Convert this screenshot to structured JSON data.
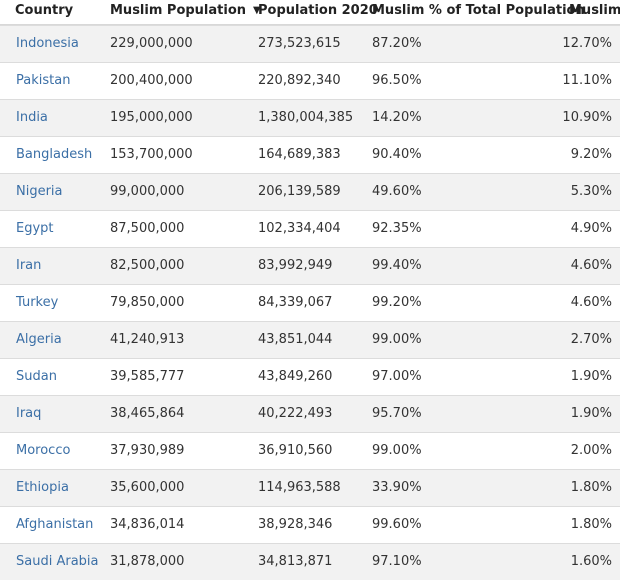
{
  "table": {
    "headers": {
      "country": "Country",
      "muslim_population": "Muslim Population",
      "population_2020": "Population 2020",
      "muslim_pct": "Muslim % of Total Population",
      "muslim_share": "Muslim"
    },
    "sort_icon": "caret-down-icon",
    "colors": {
      "link": "#3b6fa6",
      "stripe": "#f2f2f2",
      "border": "#dcdcdc"
    },
    "rows": [
      {
        "country": "Indonesia",
        "muslim_population": "229,000,000",
        "population_2020": "273,523,615",
        "muslim_pct": "87.20%",
        "muslim_share": "12.70%"
      },
      {
        "country": "Pakistan",
        "muslim_population": "200,400,000",
        "population_2020": "220,892,340",
        "muslim_pct": "96.50%",
        "muslim_share": "11.10%"
      },
      {
        "country": "India",
        "muslim_population": "195,000,000",
        "population_2020": "1,380,004,385",
        "muslim_pct": "14.20%",
        "muslim_share": "10.90%"
      },
      {
        "country": "Bangladesh",
        "muslim_population": "153,700,000",
        "population_2020": "164,689,383",
        "muslim_pct": "90.40%",
        "muslim_share": "9.20%"
      },
      {
        "country": "Nigeria",
        "muslim_population": "99,000,000",
        "population_2020": "206,139,589",
        "muslim_pct": "49.60%",
        "muslim_share": "5.30%"
      },
      {
        "country": "Egypt",
        "muslim_population": "87,500,000",
        "population_2020": "102,334,404",
        "muslim_pct": "92.35%",
        "muslim_share": "4.90%"
      },
      {
        "country": "Iran",
        "muslim_population": "82,500,000",
        "population_2020": "83,992,949",
        "muslim_pct": "99.40%",
        "muslim_share": "4.60%"
      },
      {
        "country": "Turkey",
        "muslim_population": "79,850,000",
        "population_2020": "84,339,067",
        "muslim_pct": "99.20%",
        "muslim_share": "4.60%"
      },
      {
        "country": "Algeria",
        "muslim_population": "41,240,913",
        "population_2020": "43,851,044",
        "muslim_pct": "99.00%",
        "muslim_share": "2.70%"
      },
      {
        "country": "Sudan",
        "muslim_population": "39,585,777",
        "population_2020": "43,849,260",
        "muslim_pct": "97.00%",
        "muslim_share": "1.90%"
      },
      {
        "country": "Iraq",
        "muslim_population": "38,465,864",
        "population_2020": "40,222,493",
        "muslim_pct": "95.70%",
        "muslim_share": "1.90%"
      },
      {
        "country": "Morocco",
        "muslim_population": "37,930,989",
        "population_2020": "36,910,560",
        "muslim_pct": "99.00%",
        "muslim_share": "2.00%"
      },
      {
        "country": "Ethiopia",
        "muslim_population": "35,600,000",
        "population_2020": "114,963,588",
        "muslim_pct": "33.90%",
        "muslim_share": "1.80%"
      },
      {
        "country": "Afghanistan",
        "muslim_population": "34,836,014",
        "population_2020": "38,928,346",
        "muslim_pct": "99.60%",
        "muslim_share": "1.80%"
      },
      {
        "country": "Saudi Arabia",
        "muslim_population": "31,878,000",
        "population_2020": "34,813,871",
        "muslim_pct": "97.10%",
        "muslim_share": "1.60%"
      }
    ]
  }
}
